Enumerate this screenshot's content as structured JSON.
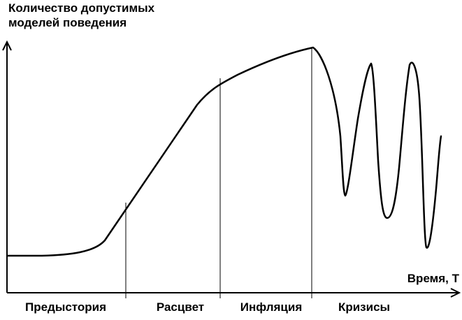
{
  "labels": {
    "y_axis_line1": "Количество допустимых",
    "y_axis_line2": "моделей поведения",
    "x_axis": "Время, T"
  },
  "phases": [
    "Предыстория",
    "Расцвет",
    "Инфляция",
    "Кризисы"
  ]
}
